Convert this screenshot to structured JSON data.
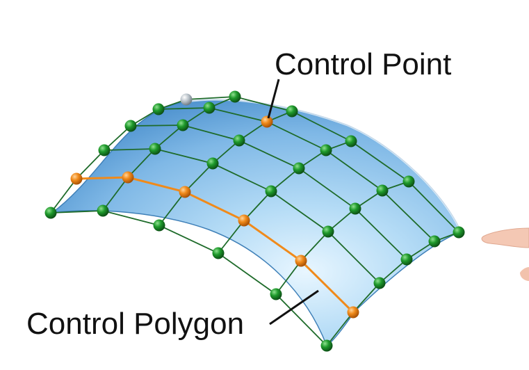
{
  "labels": {
    "control_point": "Control Point",
    "control_polygon": "Control Polygon"
  },
  "colors": {
    "surface_light": "#cfe9fb",
    "surface_mid": "#8fc4ec",
    "surface_dark": "#4f93cf",
    "grid_line": "#1e6b2a",
    "point_green": "#1f9a2c",
    "point_highlight": "#f08a1a",
    "leader_line": "#111111"
  },
  "icons": {
    "point": "sphere-dot-icon"
  }
}
